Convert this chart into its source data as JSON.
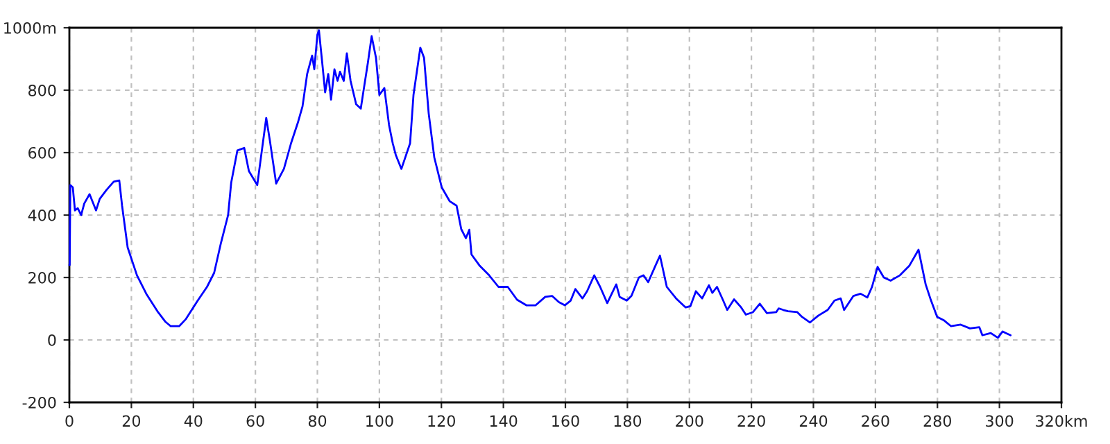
{
  "chart_data": {
    "type": "line",
    "x": [
      0,
      0.1,
      0.3,
      1.1,
      1.8,
      2.7,
      3.8,
      4.8,
      6.5,
      8.6,
      9.8,
      12,
      14.3,
      16.1,
      17,
      18.8,
      21.8,
      24.8,
      28.6,
      30.9,
      32.7,
      35.4,
      37.6,
      41.4,
      44.4,
      46.7,
      48.9,
      51.2,
      52.2,
      54.2,
      56.4,
      57.9,
      60.6,
      61.7,
      63.5,
      64.7,
      66.7,
      69.2,
      71.5,
      73.7,
      75.2,
      76.7,
      78.3,
      79,
      80,
      80.5,
      81.7,
      82.5,
      83.5,
      84.4,
      85.5,
      86.5,
      87.3,
      88.5,
      89.5,
      90.7,
      92.5,
      94,
      94.8,
      96.3,
      97.5,
      98.9,
      100,
      101.6,
      103.1,
      104.3,
      105.3,
      107.1,
      109.9,
      111,
      113.2,
      114.4,
      115.9,
      117.7,
      120.1,
      122.7,
      124.9,
      126.4,
      127.9,
      129,
      129.7,
      132.4,
      135.4,
      138.4,
      141.4,
      144.4,
      147.4,
      150.4,
      153.5,
      155.7,
      157.9,
      159.8,
      161.7,
      163.2,
      165.5,
      167,
      169.3,
      171.2,
      173.5,
      176.4,
      177.5,
      179.8,
      181.3,
      183.7,
      185.2,
      186.7,
      189,
      190.5,
      192.7,
      195.7,
      198.8,
      200.3,
      202.1,
      204.1,
      206.3,
      207.4,
      208.9,
      210.9,
      212.2,
      214.4,
      216.7,
      218.2,
      220.5,
      222.7,
      225,
      228,
      228.8,
      230.3,
      231.8,
      234.8,
      236.3,
      238.9,
      241.6,
      244.6,
      246.8,
      248.8,
      249.9,
      252.9,
      255.2,
      257.4,
      258.9,
      260.7,
      262.7,
      264.9,
      267.9,
      270.9,
      273.9,
      276.2,
      277.7,
      279.9,
      282.2,
      284.4,
      287.5,
      290.5,
      293.5,
      294.5,
      297.2,
      299.5,
      301,
      302,
      303.6
    ],
    "series": [
      {
        "color": "#0000ff",
        "values": [
          240,
          240,
          496,
          489,
          415,
          422,
          400,
          437,
          467,
          415,
          452,
          481,
          507,
          511,
          430,
          296,
          207,
          148,
          89,
          59,
          44,
          44,
          67,
          126,
          170,
          215,
          311,
          400,
          504,
          607,
          615,
          541,
          496,
          578,
          711,
          637,
          501,
          548,
          630,
          696,
          748,
          852,
          911,
          867,
          978,
          992,
          874,
          793,
          852,
          770,
          867,
          830,
          859,
          830,
          918,
          830,
          755,
          741,
          793,
          889,
          973,
          904,
          785,
          807,
          689,
          630,
          592,
          548,
          630,
          785,
          936,
          904,
          726,
          585,
          489,
          444,
          430,
          355,
          326,
          353,
          274,
          237,
          207,
          170,
          170,
          129,
          111,
          111,
          138,
          141,
          121,
          111,
          126,
          163,
          133,
          156,
          207,
          170,
          118,
          178,
          138,
          126,
          141,
          200,
          207,
          185,
          237,
          270,
          170,
          133,
          104,
          108,
          156,
          133,
          175,
          151,
          170,
          126,
          96,
          130,
          104,
          81,
          89,
          116,
          86,
          89,
          101,
          96,
          92,
          89,
          74,
          56,
          78,
          96,
          126,
          133,
          96,
          141,
          148,
          136,
          170,
          234,
          200,
          190,
          207,
          237,
          289,
          178,
          133,
          74,
          62,
          44,
          49,
          37,
          41,
          15,
          22,
          7,
          27,
          22,
          15
        ]
      }
    ],
    "xlim": [
      0,
      320
    ],
    "xticks": [
      0,
      20,
      40,
      60,
      80,
      100,
      120,
      140,
      160,
      180,
      200,
      220,
      240,
      260,
      280,
      300,
      {
        "value": 320,
        "label": "320km"
      }
    ],
    "ylim": [
      -200,
      1000
    ],
    "yticks": [
      -200,
      0,
      200,
      400,
      600,
      800,
      {
        "value": 1000,
        "label": "1000m"
      }
    ],
    "grid": true,
    "marker": "none",
    "line_style": "solid"
  }
}
